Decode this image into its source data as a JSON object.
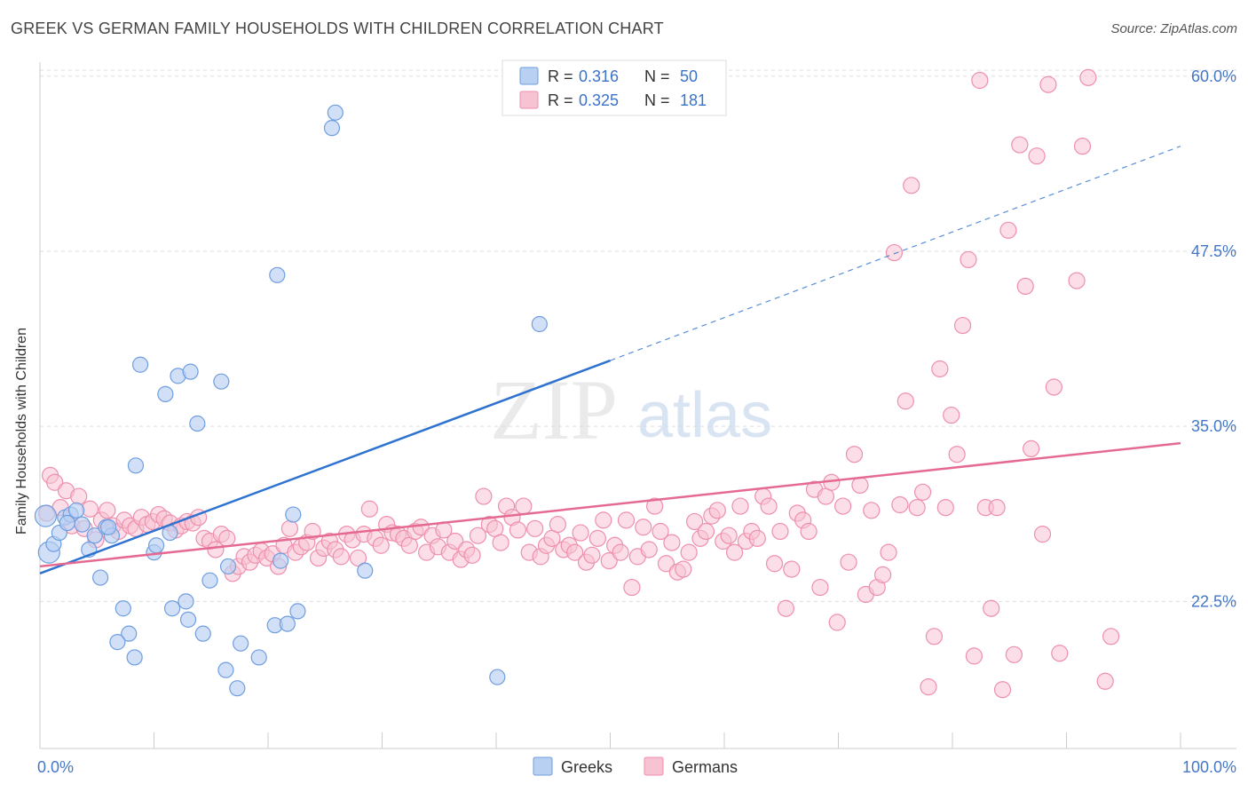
{
  "title": "GREEK VS GERMAN FAMILY HOUSEHOLDS WITH CHILDREN CORRELATION CHART",
  "source": "Source: ZipAtlas.com",
  "watermark": {
    "zip": "ZIP",
    "atlas": "atlas"
  },
  "colors": {
    "greek_fill": "#b8d0f2",
    "greek_stroke": "#6f9ee0",
    "greek_line": "#2f73d0",
    "german_fill": "#f7c3d3",
    "german_stroke": "#ee8fad",
    "german_line": "#e56a92",
    "axis_label": "#4577c8",
    "grid": "#dddddd"
  },
  "legend_top": [
    {
      "r_label": "R =",
      "r_value": "0.316",
      "n_label": "N =",
      "n_value": "50",
      "series": "Greeks"
    },
    {
      "r_label": "R =",
      "r_value": "0.325",
      "n_label": "N =",
      "n_value": "181",
      "series": "Germans"
    }
  ],
  "chart_data": {
    "type": "scatter",
    "title": "GREEK VS GERMAN FAMILY HOUSEHOLDS WITH CHILDREN CORRELATION CHART",
    "xlabel": "",
    "ylabel": "Family Households with Children",
    "xlim": [
      0,
      100
    ],
    "ylim": [
      12,
      62
    ],
    "x_tick_labels": [
      "0.0%",
      "100.0%"
    ],
    "y_ticks": [
      22.5,
      35.0,
      47.5,
      60.0
    ],
    "y_tick_labels": [
      "22.5%",
      "35.0%",
      "47.5%",
      "60.0%"
    ],
    "grid": true,
    "legend_position": "bottom-center",
    "series": [
      {
        "name": "Greeks",
        "r": 0.316,
        "n": 50,
        "trend": {
          "x0": 0,
          "y0": 24.5,
          "x1": 50,
          "y1": 39.7,
          "dashed_to_x": 100,
          "dashed_to_y": 55.0
        },
        "points": [
          [
            0.5,
            28.6
          ],
          [
            0.8,
            26.0
          ],
          [
            1.2,
            26.6
          ],
          [
            1.7,
            27.4
          ],
          [
            2.2,
            28.5
          ],
          [
            2.7,
            28.7
          ],
          [
            3.2,
            29.0
          ],
          [
            3.7,
            28.0
          ],
          [
            4.3,
            26.2
          ],
          [
            4.8,
            27.2
          ],
          [
            5.3,
            24.2
          ],
          [
            5.8,
            27.8
          ],
          [
            6.3,
            27.2
          ],
          [
            7.3,
            22.0
          ],
          [
            7.8,
            20.2
          ],
          [
            6.8,
            19.6
          ],
          [
            8.3,
            18.5
          ],
          [
            8.8,
            39.4
          ],
          [
            8.4,
            32.2
          ],
          [
            10.0,
            26.0
          ],
          [
            10.2,
            26.5
          ],
          [
            11.0,
            37.3
          ],
          [
            11.6,
            22.0
          ],
          [
            11.4,
            27.4
          ],
          [
            12.1,
            38.6
          ],
          [
            12.8,
            22.5
          ],
          [
            13.0,
            21.2
          ],
          [
            13.2,
            38.9
          ],
          [
            13.8,
            35.2
          ],
          [
            14.3,
            20.2
          ],
          [
            14.9,
            24.0
          ],
          [
            15.9,
            38.2
          ],
          [
            16.3,
            17.6
          ],
          [
            16.5,
            25.0
          ],
          [
            17.3,
            16.3
          ],
          [
            17.6,
            19.5
          ],
          [
            19.2,
            18.5
          ],
          [
            20.6,
            20.8
          ],
          [
            20.8,
            45.8
          ],
          [
            21.1,
            25.4
          ],
          [
            21.7,
            20.9
          ],
          [
            22.2,
            28.7
          ],
          [
            22.6,
            21.8
          ],
          [
            25.6,
            56.3
          ],
          [
            25.9,
            57.4
          ],
          [
            28.5,
            24.7
          ],
          [
            40.1,
            17.1
          ],
          [
            43.8,
            42.3
          ],
          [
            2.4,
            28.1
          ],
          [
            6.0,
            27.8
          ]
        ]
      },
      {
        "name": "Germans",
        "r": 0.325,
        "n": 181,
        "trend": {
          "x0": 0,
          "y0": 25.0,
          "x1": 100,
          "y1": 33.8
        },
        "points": [
          [
            0.6,
            28.8
          ],
          [
            0.9,
            31.5
          ],
          [
            1.3,
            31.0
          ],
          [
            1.8,
            29.2
          ],
          [
            2.3,
            30.4
          ],
          [
            2.8,
            27.9
          ],
          [
            3.4,
            30.0
          ],
          [
            3.9,
            27.7
          ],
          [
            4.4,
            29.1
          ],
          [
            4.9,
            26.9
          ],
          [
            5.4,
            28.3
          ],
          [
            5.9,
            29.0
          ],
          [
            6.4,
            27.9
          ],
          [
            6.9,
            27.5
          ],
          [
            7.4,
            28.3
          ],
          [
            7.9,
            27.9
          ],
          [
            8.4,
            27.7
          ],
          [
            8.9,
            28.5
          ],
          [
            9.4,
            28.0
          ],
          [
            9.9,
            28.2
          ],
          [
            10.4,
            28.7
          ],
          [
            10.9,
            28.4
          ],
          [
            11.4,
            28.1
          ],
          [
            11.9,
            27.6
          ],
          [
            12.4,
            27.9
          ],
          [
            12.9,
            28.2
          ],
          [
            13.4,
            28.1
          ],
          [
            13.9,
            28.5
          ],
          [
            14.4,
            27.0
          ],
          [
            14.9,
            26.8
          ],
          [
            15.4,
            26.2
          ],
          [
            15.9,
            27.3
          ],
          [
            16.4,
            27.0
          ],
          [
            16.9,
            24.5
          ],
          [
            17.4,
            25.0
          ],
          [
            17.9,
            25.7
          ],
          [
            18.4,
            25.3
          ],
          [
            18.9,
            25.8
          ],
          [
            19.4,
            26.1
          ],
          [
            19.9,
            25.6
          ],
          [
            20.4,
            25.9
          ],
          [
            20.9,
            25.0
          ],
          [
            21.4,
            26.5
          ],
          [
            21.9,
            27.7
          ],
          [
            22.4,
            26.0
          ],
          [
            22.9,
            26.4
          ],
          [
            23.4,
            26.7
          ],
          [
            23.9,
            27.5
          ],
          [
            24.4,
            25.6
          ],
          [
            24.9,
            26.3
          ],
          [
            25.4,
            26.8
          ],
          [
            25.9,
            26.2
          ],
          [
            26.4,
            25.7
          ],
          [
            26.9,
            27.3
          ],
          [
            27.4,
            26.9
          ],
          [
            27.9,
            25.6
          ],
          [
            28.4,
            27.3
          ],
          [
            28.9,
            29.1
          ],
          [
            29.4,
            27.0
          ],
          [
            29.9,
            26.5
          ],
          [
            30.4,
            28.0
          ],
          [
            30.9,
            27.4
          ],
          [
            31.4,
            27.3
          ],
          [
            31.9,
            27.0
          ],
          [
            32.4,
            26.5
          ],
          [
            32.9,
            27.5
          ],
          [
            33.4,
            27.8
          ],
          [
            33.9,
            26.0
          ],
          [
            34.4,
            27.2
          ],
          [
            34.9,
            26.4
          ],
          [
            35.4,
            27.6
          ],
          [
            35.9,
            26.0
          ],
          [
            36.4,
            26.8
          ],
          [
            36.9,
            25.5
          ],
          [
            37.4,
            26.2
          ],
          [
            37.9,
            25.8
          ],
          [
            38.4,
            27.2
          ],
          [
            38.9,
            30.0
          ],
          [
            39.4,
            28.0
          ],
          [
            39.9,
            27.7
          ],
          [
            40.4,
            26.7
          ],
          [
            40.9,
            29.3
          ],
          [
            41.4,
            28.5
          ],
          [
            41.9,
            27.6
          ],
          [
            42.4,
            29.3
          ],
          [
            42.9,
            26.0
          ],
          [
            43.4,
            27.7
          ],
          [
            43.9,
            25.7
          ],
          [
            44.4,
            26.5
          ],
          [
            44.9,
            27.0
          ],
          [
            45.4,
            28.0
          ],
          [
            45.9,
            26.2
          ],
          [
            46.4,
            26.5
          ],
          [
            46.9,
            26.0
          ],
          [
            47.4,
            27.4
          ],
          [
            47.9,
            25.3
          ],
          [
            48.4,
            25.8
          ],
          [
            48.9,
            27.0
          ],
          [
            49.4,
            28.3
          ],
          [
            49.9,
            25.4
          ],
          [
            50.4,
            26.5
          ],
          [
            50.9,
            26.0
          ],
          [
            51.4,
            28.3
          ],
          [
            51.9,
            23.5
          ],
          [
            52.4,
            25.7
          ],
          [
            52.9,
            27.8
          ],
          [
            53.4,
            26.2
          ],
          [
            53.9,
            29.3
          ],
          [
            54.4,
            27.5
          ],
          [
            54.9,
            25.2
          ],
          [
            55.4,
            26.7
          ],
          [
            55.9,
            24.6
          ],
          [
            56.4,
            24.8
          ],
          [
            56.9,
            26.0
          ],
          [
            57.4,
            28.2
          ],
          [
            57.9,
            27.0
          ],
          [
            58.4,
            27.5
          ],
          [
            58.9,
            28.6
          ],
          [
            59.4,
            29.0
          ],
          [
            59.9,
            26.8
          ],
          [
            60.4,
            27.2
          ],
          [
            60.9,
            26.0
          ],
          [
            61.4,
            29.3
          ],
          [
            61.9,
            26.8
          ],
          [
            62.4,
            27.5
          ],
          [
            62.9,
            27.0
          ],
          [
            63.4,
            30.0
          ],
          [
            63.9,
            29.3
          ],
          [
            64.4,
            25.2
          ],
          [
            64.9,
            27.5
          ],
          [
            65.4,
            22.0
          ],
          [
            65.9,
            24.8
          ],
          [
            66.4,
            28.8
          ],
          [
            66.9,
            28.3
          ],
          [
            67.4,
            27.5
          ],
          [
            67.9,
            30.5
          ],
          [
            68.4,
            23.5
          ],
          [
            68.9,
            30.0
          ],
          [
            69.4,
            31.0
          ],
          [
            69.9,
            21.0
          ],
          [
            70.4,
            29.3
          ],
          [
            70.9,
            25.3
          ],
          [
            71.4,
            33.0
          ],
          [
            71.9,
            30.8
          ],
          [
            72.4,
            23.0
          ],
          [
            72.9,
            29.0
          ],
          [
            73.4,
            23.5
          ],
          [
            73.9,
            24.4
          ],
          [
            74.4,
            26.0
          ],
          [
            74.9,
            47.4
          ],
          [
            75.4,
            29.4
          ],
          [
            75.9,
            36.8
          ],
          [
            76.4,
            52.2
          ],
          [
            76.9,
            29.2
          ],
          [
            77.4,
            30.3
          ],
          [
            77.9,
            16.4
          ],
          [
            78.4,
            20.0
          ],
          [
            78.9,
            39.1
          ],
          [
            79.4,
            29.2
          ],
          [
            79.9,
            35.8
          ],
          [
            80.4,
            33.0
          ],
          [
            80.9,
            42.2
          ],
          [
            81.4,
            46.9
          ],
          [
            81.9,
            18.6
          ],
          [
            82.4,
            59.7
          ],
          [
            82.9,
            29.2
          ],
          [
            83.4,
            22.0
          ],
          [
            83.9,
            29.2
          ],
          [
            84.4,
            16.2
          ],
          [
            84.9,
            49.0
          ],
          [
            85.4,
            18.7
          ],
          [
            85.9,
            55.1
          ],
          [
            86.4,
            45.0
          ],
          [
            86.9,
            33.4
          ],
          [
            87.4,
            54.3
          ],
          [
            87.9,
            27.3
          ],
          [
            88.4,
            59.4
          ],
          [
            88.9,
            37.8
          ],
          [
            89.4,
            18.8
          ],
          [
            90.9,
            45.4
          ],
          [
            91.4,
            55.0
          ],
          [
            91.9,
            59.9
          ],
          [
            93.4,
            16.8
          ],
          [
            93.9,
            20.0
          ]
        ]
      }
    ]
  },
  "legend_bottom": [
    {
      "label": "Greeks"
    },
    {
      "label": "Germans"
    }
  ]
}
